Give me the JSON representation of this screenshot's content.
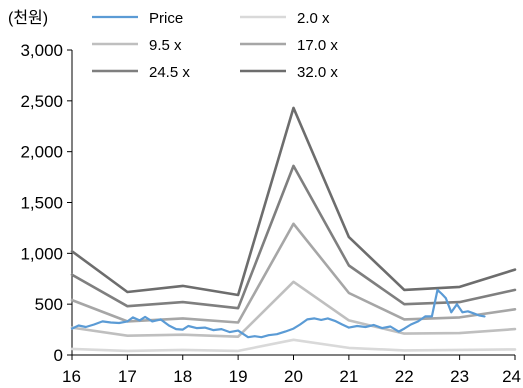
{
  "chart_data": {
    "type": "line",
    "y_unit_label": "(천원)",
    "xlabel": "",
    "ylabel": "",
    "x_ticks": [
      "16",
      "17",
      "18",
      "19",
      "20",
      "21",
      "22",
      "23",
      "24"
    ],
    "y_ticks": [
      "0",
      "500",
      "1,000",
      "1,500",
      "2,000",
      "2,500",
      "3,000"
    ],
    "xlim": [
      16,
      24
    ],
    "ylim": [
      0,
      3000
    ],
    "grid": false,
    "legend_position": "top",
    "series": [
      {
        "name": "Price",
        "color": "#5b9bd5",
        "width": 2.2,
        "points": [
          [
            16.0,
            260
          ],
          [
            16.12,
            290
          ],
          [
            16.25,
            275
          ],
          [
            16.4,
            300
          ],
          [
            16.55,
            330
          ],
          [
            16.7,
            320
          ],
          [
            16.85,
            315
          ],
          [
            17.0,
            330
          ],
          [
            17.1,
            370
          ],
          [
            17.22,
            340
          ],
          [
            17.32,
            375
          ],
          [
            17.45,
            330
          ],
          [
            17.6,
            350
          ],
          [
            17.75,
            290
          ],
          [
            17.88,
            255
          ],
          [
            18.0,
            250
          ],
          [
            18.1,
            285
          ],
          [
            18.25,
            265
          ],
          [
            18.4,
            270
          ],
          [
            18.55,
            245
          ],
          [
            18.7,
            255
          ],
          [
            18.85,
            225
          ],
          [
            19.0,
            240
          ],
          [
            19.08,
            210
          ],
          [
            19.18,
            175
          ],
          [
            19.3,
            185
          ],
          [
            19.42,
            175
          ],
          [
            19.55,
            195
          ],
          [
            19.7,
            205
          ],
          [
            19.85,
            230
          ],
          [
            20.0,
            260
          ],
          [
            20.12,
            300
          ],
          [
            20.25,
            350
          ],
          [
            20.38,
            360
          ],
          [
            20.5,
            345
          ],
          [
            20.62,
            360
          ],
          [
            20.75,
            335
          ],
          [
            20.88,
            300
          ],
          [
            21.0,
            270
          ],
          [
            21.15,
            285
          ],
          [
            21.3,
            275
          ],
          [
            21.45,
            295
          ],
          [
            21.6,
            265
          ],
          [
            21.75,
            280
          ],
          [
            21.9,
            230
          ],
          [
            22.0,
            260
          ],
          [
            22.12,
            300
          ],
          [
            22.25,
            330
          ],
          [
            22.38,
            380
          ],
          [
            22.5,
            380
          ],
          [
            22.6,
            640
          ],
          [
            22.68,
            600
          ],
          [
            22.75,
            560
          ],
          [
            22.85,
            420
          ],
          [
            22.95,
            500
          ],
          [
            23.05,
            420
          ],
          [
            23.15,
            430
          ],
          [
            23.25,
            410
          ],
          [
            23.35,
            390
          ],
          [
            23.45,
            380
          ]
        ]
      },
      {
        "name": "2.0 x",
        "color": "#d9d9d9",
        "width": 2.6,
        "points": [
          [
            16,
            60
          ],
          [
            17,
            40
          ],
          [
            18,
            50
          ],
          [
            19,
            40
          ],
          [
            20,
            150
          ],
          [
            21,
            70
          ],
          [
            22,
            45
          ],
          [
            23,
            50
          ],
          [
            24,
            55
          ]
        ]
      },
      {
        "name": "9.5 x",
        "color": "#bfbfbf",
        "width": 2.6,
        "points": [
          [
            16,
            270
          ],
          [
            17,
            190
          ],
          [
            18,
            200
          ],
          [
            19,
            180
          ],
          [
            20,
            720
          ],
          [
            21,
            340
          ],
          [
            22,
            210
          ],
          [
            23,
            215
          ],
          [
            24,
            255
          ]
        ]
      },
      {
        "name": "17.0 x",
        "color": "#a6a6a6",
        "width": 2.6,
        "points": [
          [
            16,
            540
          ],
          [
            17,
            330
          ],
          [
            18,
            360
          ],
          [
            19,
            320
          ],
          [
            20,
            1290
          ],
          [
            21,
            610
          ],
          [
            22,
            350
          ],
          [
            23,
            370
          ],
          [
            24,
            450
          ]
        ]
      },
      {
        "name": "24.5 x",
        "color": "#7f7f7f",
        "width": 2.6,
        "points": [
          [
            16,
            790
          ],
          [
            17,
            480
          ],
          [
            18,
            520
          ],
          [
            19,
            460
          ],
          [
            20,
            1860
          ],
          [
            21,
            880
          ],
          [
            22,
            500
          ],
          [
            23,
            520
          ],
          [
            24,
            640
          ]
        ]
      },
      {
        "name": "32.0 x",
        "color": "#6d6d6d",
        "width": 2.6,
        "points": [
          [
            16,
            1020
          ],
          [
            17,
            620
          ],
          [
            18,
            680
          ],
          [
            19,
            590
          ],
          [
            20,
            2430
          ],
          [
            21,
            1160
          ],
          [
            22,
            640
          ],
          [
            23,
            670
          ],
          [
            24,
            840
          ]
        ]
      }
    ]
  }
}
